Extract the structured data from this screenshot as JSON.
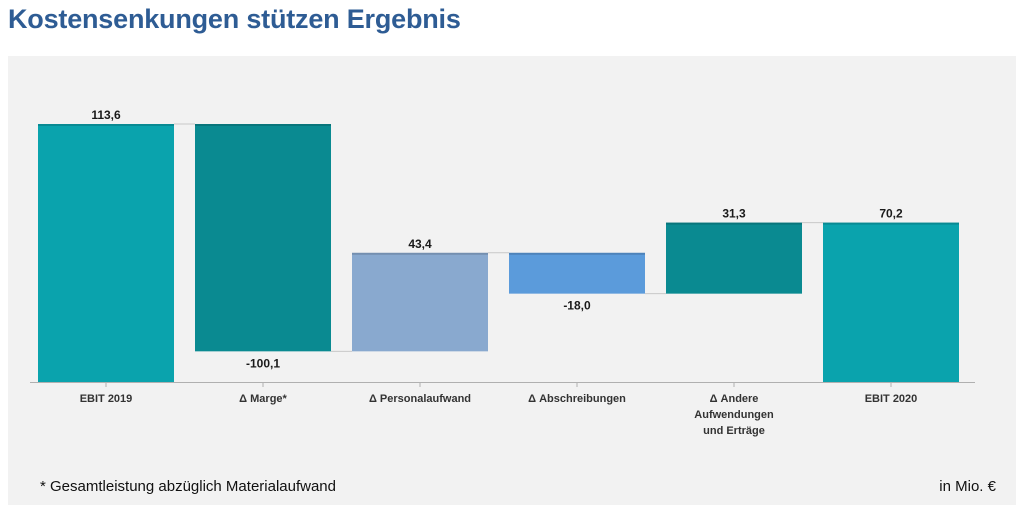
{
  "header": {
    "title": "Kostensenkungen stützen Ergebnis"
  },
  "footer": {
    "footnote": "* Gesamtleistung abzüglich Materialaufwand",
    "unit": "in Mio. €"
  },
  "chart_data": {
    "type": "bar",
    "subtype": "waterfall",
    "categories": [
      "EBIT 2019",
      "Δ Marge*",
      "Δ Personalaufwand",
      "Δ Abschreibungen",
      "Δ Andere\nAufwendungen\nund Erträge",
      "EBIT 2020"
    ],
    "values": [
      113.6,
      -100.1,
      43.4,
      -18.0,
      31.3,
      70.2
    ],
    "value_labels": [
      "113,6",
      "-100,1",
      "43,4",
      "-18,0",
      "31,3",
      "70,2"
    ],
    "bar_kind": [
      "total",
      "delta",
      "delta",
      "delta",
      "delta",
      "total"
    ],
    "colors": [
      "#0aa3ad",
      "#0a8a91",
      "#89a9cf",
      "#5b9bdb",
      "#0a8a91",
      "#0aa3ad"
    ],
    "title": "Kostensenkungen stützen Ergebnis",
    "xlabel": "",
    "ylabel": "",
    "ylim": [
      0,
      113.6
    ],
    "grid": false,
    "legend": "none",
    "connector_lines": true
  }
}
